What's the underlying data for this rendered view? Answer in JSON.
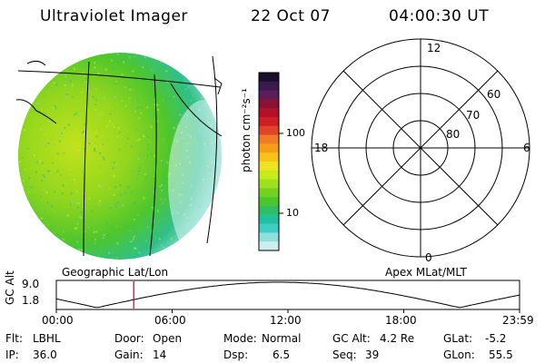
{
  "header": {
    "instrument": "Ultraviolet Imager",
    "date": "22 Oct 07",
    "time": "04:00:30 UT"
  },
  "colorbar": {
    "label": "photon cm⁻²s⁻¹",
    "ticks": [
      "100",
      "10"
    ],
    "colors": [
      "#1a0f2b",
      "#3a1a4f",
      "#5b1d5b",
      "#8a1233",
      "#b4102a",
      "#cf1f24",
      "#e0442a",
      "#f07c28",
      "#f59e17",
      "#f7c21a",
      "#efe321",
      "#c7ea1b",
      "#9ee21d",
      "#73d11f",
      "#4dc52e",
      "#2fbe66",
      "#22c19d",
      "#3fcdc6",
      "#8fe0dc",
      "#cdeeee"
    ]
  },
  "left_panel": {
    "label": "Geographic Lat/Lon"
  },
  "right_panel": {
    "label": "Apex MLat/MLT",
    "mlt_labels": {
      "top": "12",
      "left": "18",
      "right": "6",
      "bottom": "0"
    },
    "lat_labels": [
      "60",
      "70",
      "80"
    ]
  },
  "timeline": {
    "ylabel": "GC Alt",
    "yticks": [
      "9.0",
      "1.8"
    ],
    "xticks": [
      "00:00",
      "06:00",
      "12:00",
      "18:00",
      "23:59"
    ],
    "marker_hour": 4.01
  },
  "info": {
    "flt_label": "Flt:",
    "flt_value": "LBHL",
    "ip_label": "IP:",
    "ip_value": "36.0",
    "door_label": "Door:",
    "door_value": "Open",
    "gain_label": "Gain:",
    "gain_value": "14",
    "mode_label": "Mode:",
    "mode_value": "Normal",
    "dsp_label": "Dsp:",
    "dsp_value": "6.5",
    "gcalt_label": "GC Alt:",
    "gcalt_value": "4.2 Re",
    "seq_label": "Seq:",
    "seq_value": "39",
    "glat_label": "GLat:",
    "glat_value": "-5.2",
    "glon_label": "GLon:",
    "glon_value": "55.5"
  }
}
